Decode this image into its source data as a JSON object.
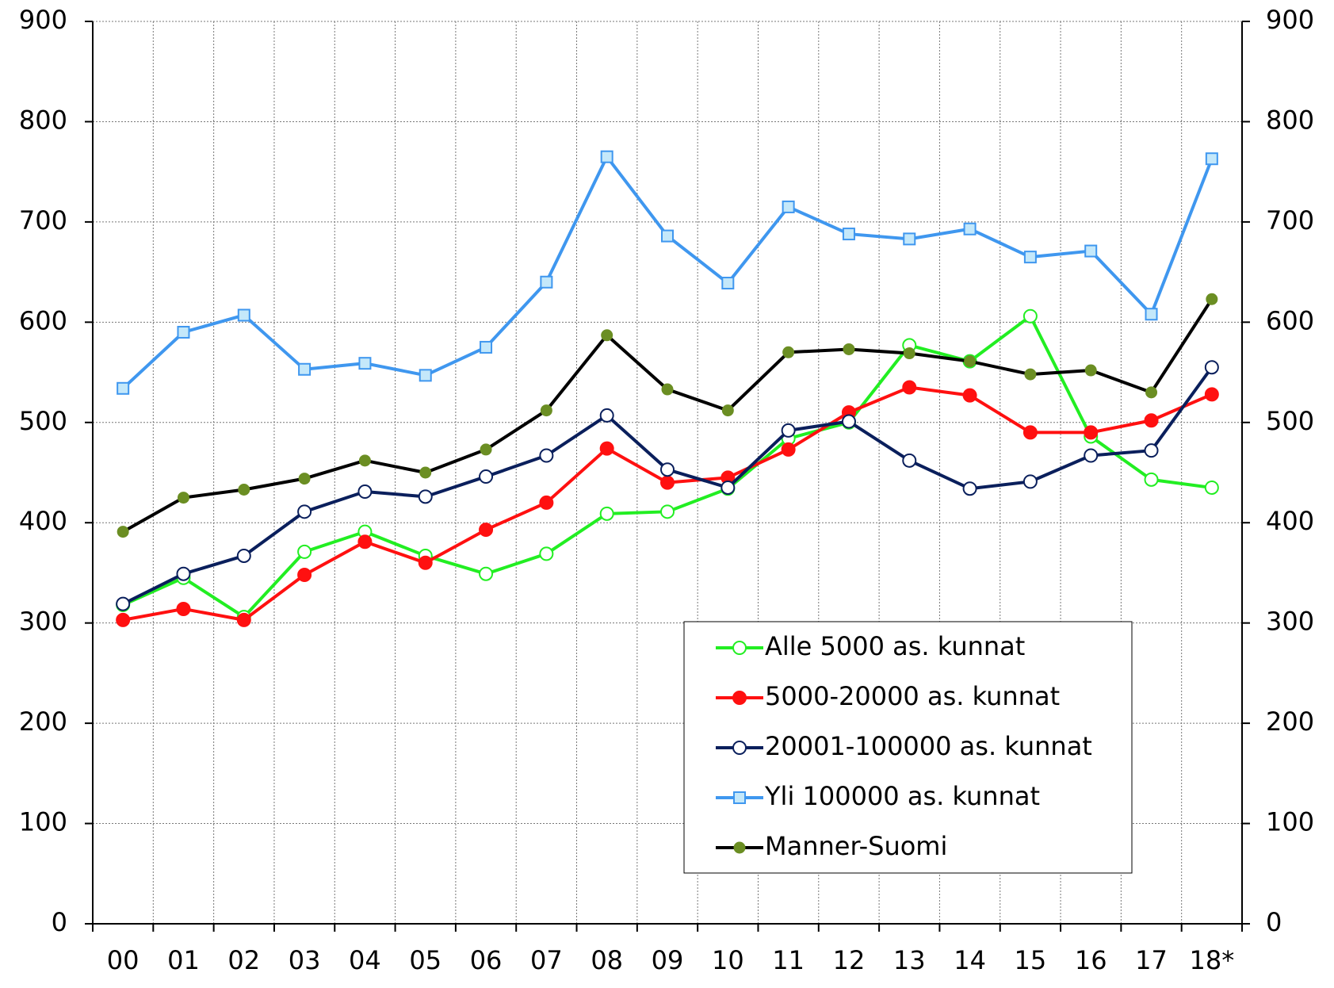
{
  "chart_data": {
    "type": "line",
    "categories": [
      "00",
      "01",
      "02",
      "03",
      "04",
      "05",
      "06",
      "07",
      "08",
      "09",
      "10",
      "11",
      "12",
      "13",
      "14",
      "15",
      "16",
      "17",
      "18*"
    ],
    "ylim": [
      0,
      900
    ],
    "yticks": [
      0,
      100,
      200,
      300,
      400,
      500,
      600,
      700,
      800,
      900
    ],
    "y2lim": [
      0,
      900
    ],
    "y2ticks": [
      0,
      100,
      200,
      300,
      400,
      500,
      600,
      700,
      800,
      900
    ],
    "grid": true,
    "legend": "lower right",
    "series": [
      {
        "name": "Alle 5000 as. kunnat",
        "color": "#22ee22",
        "marker": "circle",
        "marker_fill": "#ffffff",
        "marker_stroke": "#22ee22",
        "values": [
          318,
          345,
          306,
          371,
          391,
          367,
          349,
          369,
          409,
          411,
          434,
          484,
          500,
          577,
          561,
          606,
          486,
          443,
          435
        ]
      },
      {
        "name": "5000-20000 as. kunnat",
        "color": "#ff1010",
        "marker": "circle",
        "marker_fill": "#ff1010",
        "marker_stroke": "#ff1010",
        "values": [
          303,
          314,
          303,
          348,
          381,
          360,
          393,
          420,
          474,
          440,
          445,
          473,
          510,
          535,
          527,
          490,
          490,
          502,
          528
        ]
      },
      {
        "name": "20001-100000 as. kunnat",
        "color": "#0a1f5c",
        "marker": "circle",
        "marker_fill": "#ffffff",
        "marker_stroke": "#0a1f5c",
        "values": [
          319,
          349,
          367,
          411,
          431,
          426,
          446,
          467,
          507,
          453,
          435,
          492,
          501,
          462,
          434,
          441,
          467,
          472,
          555
        ]
      },
      {
        "name": "Yli 100000 as. kunnat",
        "color": "#3f97ef",
        "marker": "square",
        "marker_fill": "#c4e8fa",
        "marker_stroke": "#3f97ef",
        "values": [
          534,
          590,
          607,
          553,
          559,
          547,
          575,
          640,
          765,
          686,
          639,
          715,
          688,
          683,
          693,
          665,
          671,
          608,
          763
        ]
      },
      {
        "name": "Manner-Suomi",
        "color": "#000000",
        "marker": "dot",
        "marker_fill": "#6b8e23",
        "marker_stroke": "#6b8e23",
        "values": [
          391,
          425,
          433,
          444,
          462,
          450,
          473,
          512,
          587,
          533,
          512,
          570,
          573,
          569,
          561,
          548,
          552,
          530,
          623
        ]
      }
    ]
  }
}
